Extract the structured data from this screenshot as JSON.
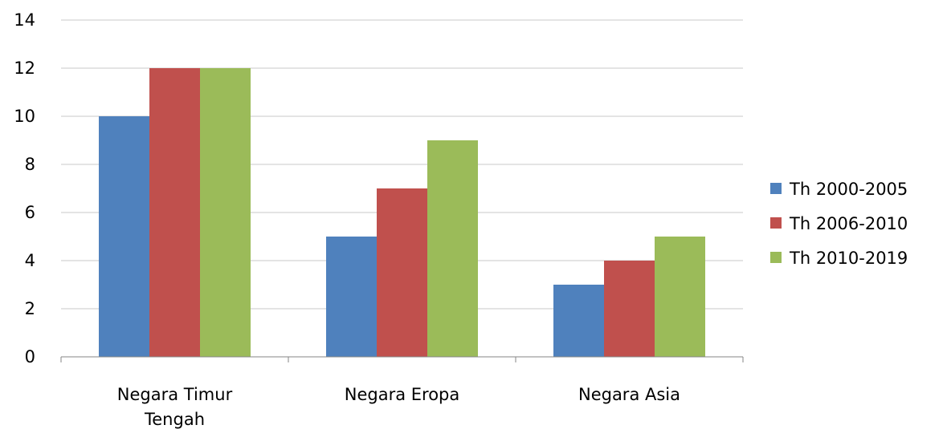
{
  "chart_data": {
    "type": "bar",
    "title": "",
    "xlabel": "",
    "ylabel": "",
    "categories": [
      [
        "Negara Timur",
        "Tengah"
      ],
      [
        "Negara Eropa"
      ],
      [
        "Negara Asia"
      ]
    ],
    "series": [
      {
        "name": "Th 2000-2005",
        "color": "#4F81BD",
        "values": [
          10,
          5,
          3
        ]
      },
      {
        "name": "Th 2006-2010",
        "color": "#C0504D",
        "values": [
          12,
          7,
          4
        ]
      },
      {
        "name": "Th 2010-2019",
        "color": "#9BBB59",
        "values": [
          12,
          9,
          5
        ]
      }
    ],
    "ylim": [
      0,
      14
    ],
    "yticks": [
      0,
      2,
      4,
      6,
      8,
      10,
      12,
      14
    ],
    "grid": true,
    "legend_position": "right"
  }
}
